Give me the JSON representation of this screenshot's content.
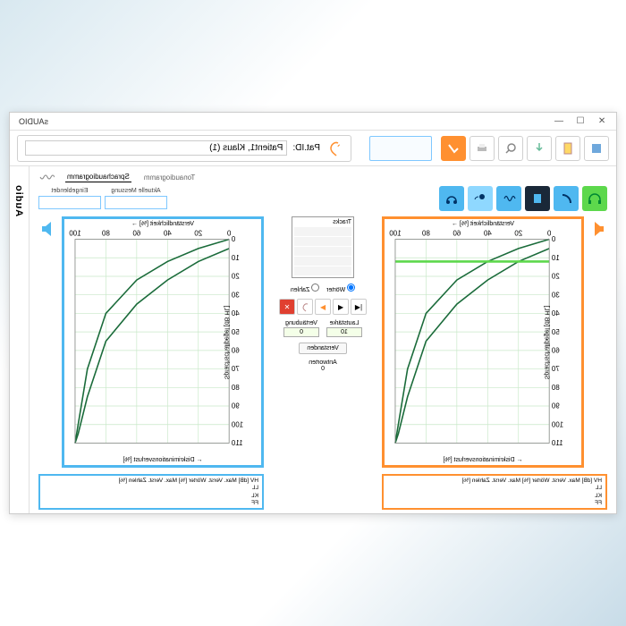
{
  "window": {
    "title": "sAUDIO"
  },
  "patient": {
    "label": "Pat.ID:",
    "value": "Patient1, Klaus (1)"
  },
  "sidebar": {
    "label": "Audio"
  },
  "tabs": {
    "tone": "Tonaudiogramm",
    "speech": "Sprachaudiogramm"
  },
  "fields": {
    "aktuelle": {
      "label": "Aktuelle Messung",
      "value": ""
    },
    "eingeblendet": {
      "label": "Eingeblendet",
      "value": ""
    }
  },
  "chart": {
    "top_label": "Verständlichkeit [%] →",
    "bottom_label": "← Diskriminationsverlust [%]",
    "y_label": "Sprachschallpegel [dB HL]",
    "xticks": [
      0,
      20,
      40,
      60,
      80,
      100
    ],
    "yticks": [
      0,
      10,
      20,
      30,
      40,
      50,
      60,
      70,
      80,
      90,
      100,
      110
    ],
    "xlim": [
      0,
      100
    ],
    "ylim": [
      0,
      110
    ],
    "grid_color": "#c8e8c8",
    "curves": [
      {
        "color": "#1a6b3a",
        "width": 1.2,
        "pts": [
          [
            0,
            0
          ],
          [
            20,
            5
          ],
          [
            40,
            12
          ],
          [
            60,
            22
          ],
          [
            80,
            40
          ],
          [
            92,
            70
          ],
          [
            98,
            100
          ],
          [
            100,
            110
          ]
        ]
      },
      {
        "color": "#1a6b3a",
        "width": 1.2,
        "pts": [
          [
            0,
            5
          ],
          [
            20,
            12
          ],
          [
            40,
            22
          ],
          [
            60,
            35
          ],
          [
            80,
            55
          ],
          [
            92,
            85
          ],
          [
            98,
            105
          ],
          [
            100,
            110
          ]
        ]
      }
    ],
    "right_marker": {
      "color": "#5dd84c",
      "y": 12
    }
  },
  "table": {
    "header": "HV [dB]   Max. Verst. Wörter [%]   Max. Verst. Zahlen [%]",
    "rows": [
      "LL",
      "KL",
      "FF"
    ]
  },
  "center": {
    "tracks_label": "Tracks",
    "radios": {
      "worter": "Wörter",
      "zahlen": "Zahlen"
    },
    "lautstarke": {
      "label": "Lautstärke",
      "value": "10"
    },
    "vertaubung": {
      "label": "Vertäubung",
      "value": "0"
    },
    "verstanden": "Verstanden",
    "antworten": {
      "label": "Antworten",
      "value": "0"
    }
  },
  "colors": {
    "orange": "#ff9030",
    "blue": "#4fb8f0",
    "green": "#5dd84c",
    "darkblue": "#1a2838"
  }
}
